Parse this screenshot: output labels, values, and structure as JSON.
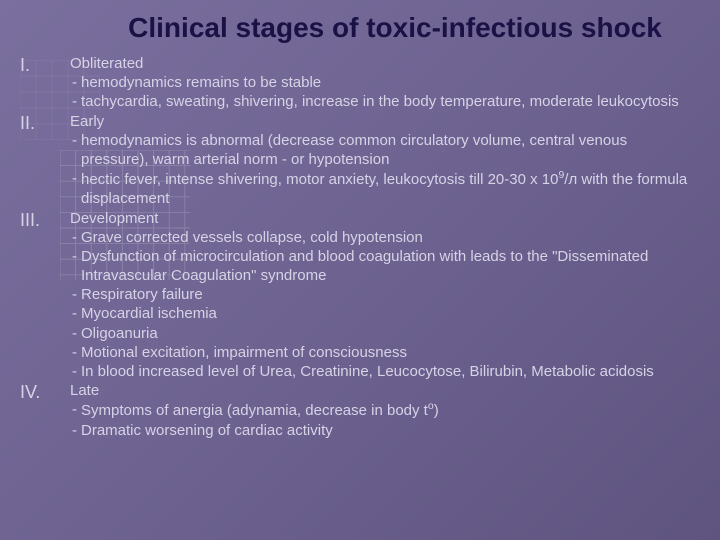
{
  "colors": {
    "title": "#1a1145",
    "text": "#d7d3e6",
    "bg_gradient": [
      "#7a6f9e",
      "#6d6290",
      "#5f5480"
    ]
  },
  "typography": {
    "title_fontsize": 28,
    "title_weight": "bold",
    "body_fontsize": 15,
    "num_fontsize": 18,
    "family": "Arial"
  },
  "title": "Clinical stages of toxic-infectious shock",
  "stages": [
    {
      "num": "I.",
      "name": "Obliterated",
      "bullets": [
        "hemodynamics remains to be stable",
        "tachycardia, sweating, shivering, increase in the body temperature, moderate leukocytosis"
      ]
    },
    {
      "num": "II.",
      "name": "Early",
      "bullets": [
        " hemodynamics is abnormal (decrease common circulatory volume, central venous pressure), warm arterial norm -  or  hypotension",
        "hectic fever, intense shivering, motor anxiety, leukocytosis till 20-30 x 10⁹/л with the formula displacement"
      ]
    },
    {
      "num": "III.",
      "name": "Development",
      "bullets": [
        "         Grave corrected vessels collapse, cold hypotension",
        "Dysfunction of microcirculation and blood coagulation with leads to the \"Disseminated Intravascular Coagulation\" syndrome",
        "Respiratory failure",
        "Myocardial ischemia",
        "Oligoanuria",
        "Motional  excitation, impairment of consciousness",
        "In blood increased level of Urea, Creatinine, Leucocytose, Bilirubin, Metabolic acidosis"
      ]
    },
    {
      "num": "IV.",
      "name": "Late",
      "bullets": [
        "Symptoms of anergia (adynamia, decrease in body tᵒ)",
        "Dramatic worsening of cardiac activity"
      ]
    }
  ]
}
